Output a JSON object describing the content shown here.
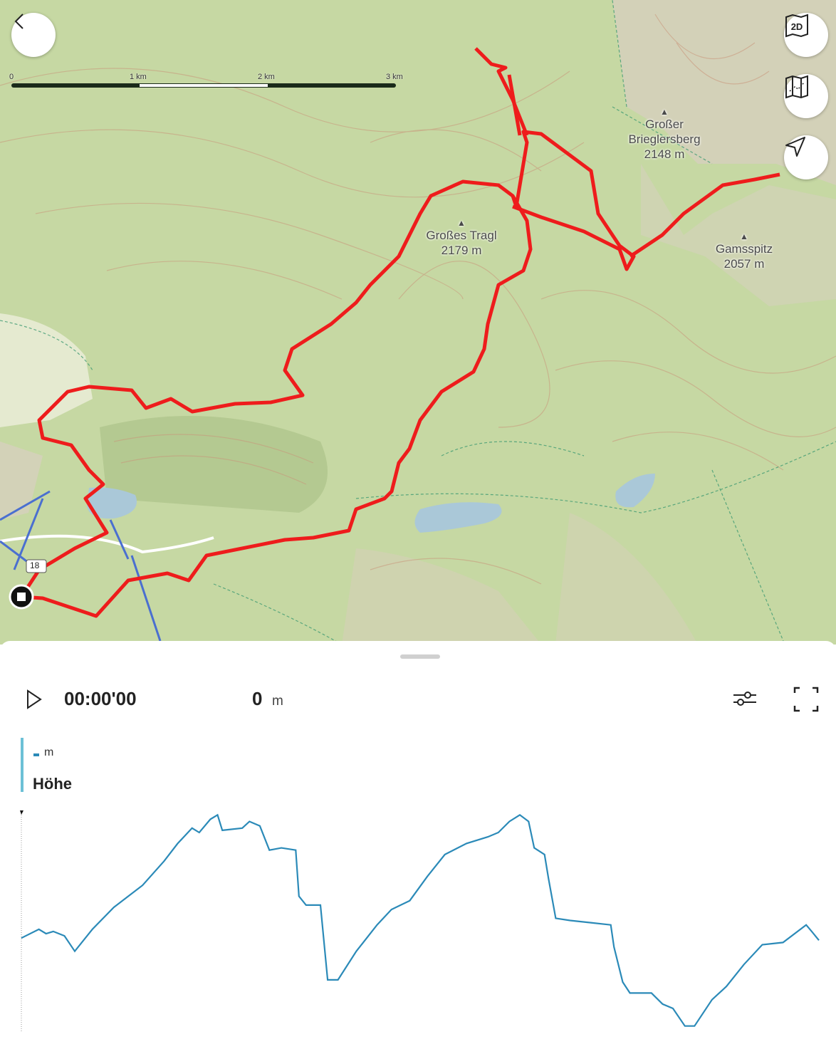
{
  "map": {
    "scale_labels": [
      "0",
      "1 km",
      "2 km",
      "3 km"
    ],
    "peaks": [
      {
        "name": "Großer Brieglersberg",
        "name_line1": "Großer",
        "name_line2": "Brieglersberg",
        "elevation": "2148 m"
      },
      {
        "name": "Großes Tragl",
        "elevation": "2179 m"
      },
      {
        "name": "Gamsspitz",
        "elevation": "2057 m"
      }
    ],
    "road_label": "18",
    "route_color": "#ee1c1c",
    "buttons": {
      "back": "back-icon",
      "view_2d": "2D",
      "map_layers": "map-icon",
      "locate": "navigation-arrow-icon"
    }
  },
  "player": {
    "time": "00:00'00",
    "distance_value": "0",
    "distance_unit": "m"
  },
  "chart_data": {
    "type": "line",
    "title": "Höhe",
    "legend_unit": "m",
    "color": "#2b8ab8",
    "ylim": [
      1190,
      2210
    ],
    "xlim": [
      0,
      100
    ],
    "grid": false,
    "series": [
      {
        "x": [
          0,
          2.2,
          3.1,
          4,
          5.4,
          6.7,
          8.9,
          11.6,
          13.4,
          15.2,
          17.9,
          19.6,
          21.4,
          22.3,
          23.7,
          24.6,
          25.2,
          27.7,
          28.6,
          29.9,
          31.1,
          32.6,
          34.4,
          34.8,
          35.7,
          37.5,
          38.4,
          39.7,
          42,
          44.6,
          46.4,
          48.7,
          50.9,
          53.1,
          55.8,
          58.5,
          59.8,
          61.2,
          62.5,
          63.6,
          64.3,
          65.6,
          66.1,
          67,
          68.8,
          71.4,
          73.9,
          74.3,
          75.4,
          76.3,
          79,
          80.4,
          81.7,
          83.2,
          84.4,
          86.6,
          88.4,
          90.6,
          92.9,
          95.5,
          98.4,
          99.1,
          100
        ],
        "y": [
          1620,
          1660,
          1640,
          1650,
          1630,
          1560,
          1660,
          1760,
          1810,
          1860,
          1970,
          2050,
          2120,
          2100,
          2160,
          2180,
          2110,
          2120,
          2150,
          2130,
          2020,
          2030,
          2020,
          1810,
          1770,
          1770,
          1430,
          1430,
          1560,
          1680,
          1750,
          1790,
          1900,
          2000,
          2050,
          2080,
          2100,
          2150,
          2180,
          2150,
          2030,
          2000,
          1890,
          1710,
          1700,
          1690,
          1680,
          1580,
          1420,
          1370,
          1370,
          1320,
          1300,
          1220,
          1220,
          1340,
          1400,
          1500,
          1590,
          1600,
          1680,
          1650,
          1610
        ]
      }
    ]
  }
}
